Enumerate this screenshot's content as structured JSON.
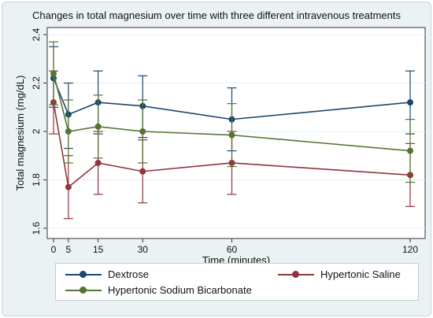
{
  "chart_data": {
    "type": "line",
    "title": "Changes in total magnesium over time with three different intravenous treatments",
    "xlabel": "Time (minutes)",
    "ylabel": "Total magnesium (mg/dL)",
    "x": [
      0,
      5,
      15,
      30,
      60,
      120
    ],
    "x_ticks": [
      "0",
      "5",
      "15",
      "30",
      "60",
      "120"
    ],
    "y_ticks": [
      "1.6",
      "1.8",
      "2",
      "2.2",
      "2.4"
    ],
    "ylim": [
      1.6,
      2.4
    ],
    "grid": "horizontal",
    "legend_position": "bottom",
    "series": [
      {
        "name": "Dextrose",
        "color": "#1a476f",
        "values": [
          2.22,
          2.07,
          2.12,
          2.105,
          2.05,
          2.12
        ],
        "lower": [
          2.1,
          1.93,
          1.99,
          1.975,
          1.92,
          1.99
        ],
        "upper": [
          2.35,
          2.2,
          2.25,
          2.23,
          2.18,
          2.25
        ]
      },
      {
        "name": "Hypertonic Saline",
        "color": "#90353b",
        "values": [
          2.12,
          1.77,
          1.87,
          1.835,
          1.87,
          1.82
        ],
        "lower": [
          1.99,
          1.64,
          1.74,
          1.705,
          1.74,
          1.69
        ],
        "upper": [
          2.25,
          1.9,
          2.0,
          1.965,
          2.0,
          1.95
        ]
      },
      {
        "name": "Hypertonic Sodium Bicarbonate",
        "color": "#55752f",
        "values": [
          2.24,
          2.0,
          2.02,
          2.0,
          1.985,
          1.92
        ],
        "lower": [
          2.11,
          1.87,
          1.89,
          1.87,
          1.855,
          1.79
        ],
        "upper": [
          2.37,
          2.13,
          2.15,
          2.13,
          2.115,
          2.05
        ]
      }
    ]
  }
}
